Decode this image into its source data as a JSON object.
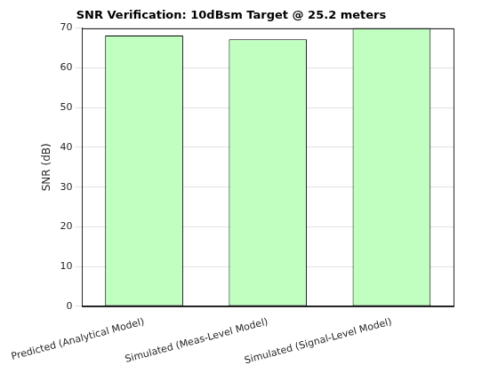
{
  "chart_data": {
    "type": "bar",
    "title": "SNR Verification: 10dBsm Target @ 25.2 meters",
    "y_label": "SNR (dB)",
    "categories": [
      "Predicted (Analytical Model)",
      "Simulated (Meas-Level Model)",
      "Simulated (Signal-Level Model)"
    ],
    "values": [
      68.1,
      67.2,
      70
    ],
    "color": "#c0ffc0",
    "ylim": [
      0,
      70
    ],
    "yticks": [
      0,
      10,
      20,
      30,
      40,
      50,
      60,
      70
    ],
    "grid": true
  }
}
